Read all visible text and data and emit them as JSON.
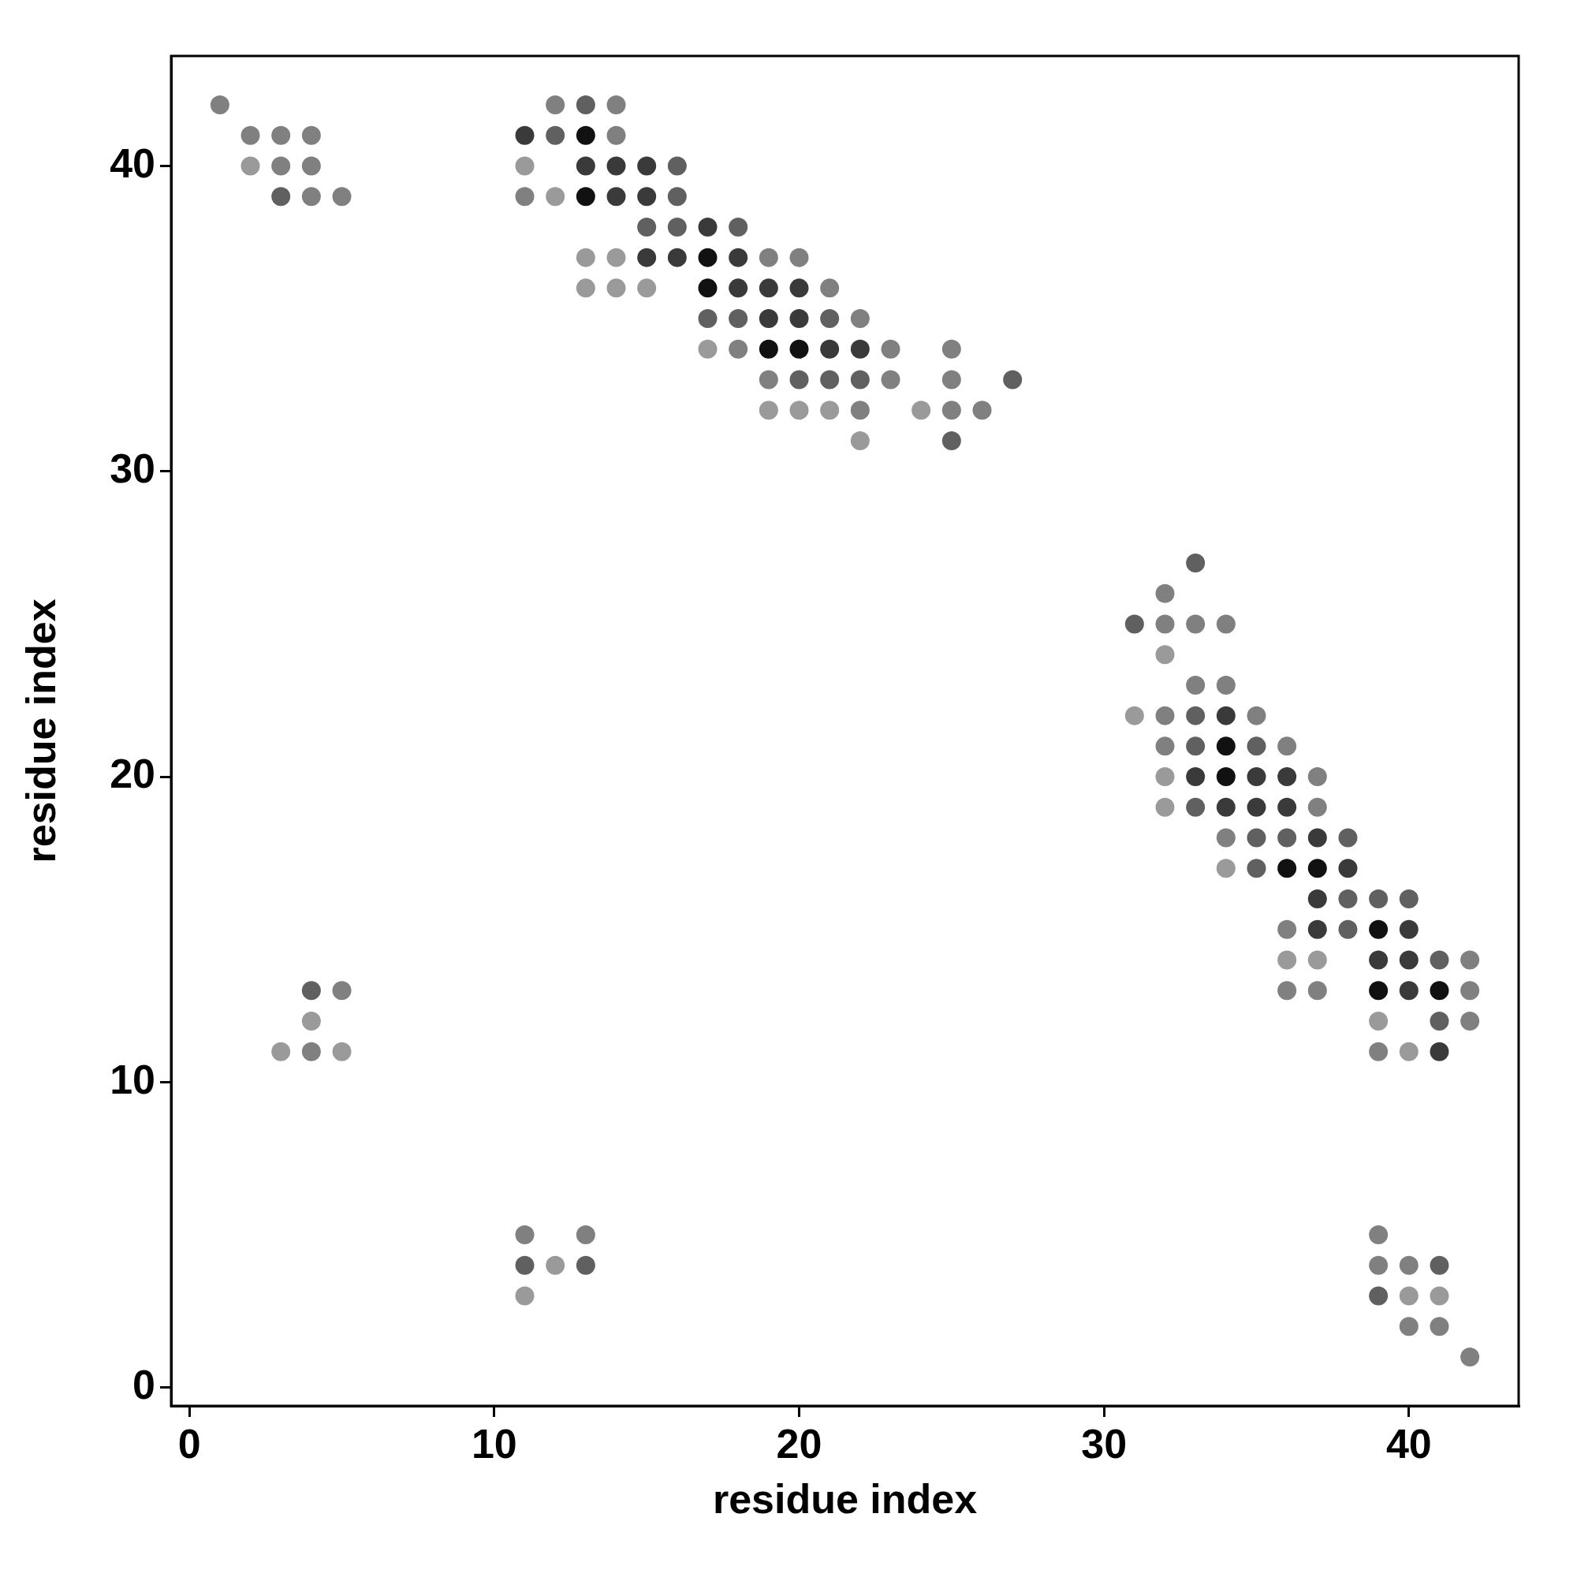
{
  "chart_data": {
    "type": "scatter",
    "xlabel": "residue index",
    "ylabel": "residue index",
    "xlim": [
      -0.6,
      43.6
    ],
    "ylim": [
      -0.6,
      43.6
    ],
    "xticks": [
      0,
      10,
      20,
      30,
      40
    ],
    "yticks": [
      0,
      10,
      20,
      30,
      40
    ],
    "marker": "circle",
    "series": [
      {
        "x": [
          1,
          12,
          13,
          14,
          2,
          3,
          4,
          11,
          12,
          13,
          14,
          2,
          3,
          4,
          11,
          13,
          14,
          15,
          16,
          3,
          4,
          5,
          11,
          12,
          13,
          14,
          15,
          16,
          15,
          16,
          17,
          18,
          13,
          14,
          15,
          16,
          17,
          18,
          19,
          20,
          13,
          14,
          15,
          17,
          18,
          19,
          20,
          21,
          17,
          18,
          19,
          20,
          21,
          22,
          17,
          18,
          19,
          20,
          21,
          22,
          23,
          25,
          19,
          20,
          21,
          22,
          23,
          25,
          27,
          19,
          20,
          21,
          22,
          24,
          25,
          26,
          22,
          25,
          33,
          32,
          31,
          32,
          33,
          34,
          32,
          33,
          34,
          31,
          32,
          33,
          34,
          35,
          32,
          33,
          34,
          35,
          36,
          32,
          33,
          34,
          35,
          36,
          37,
          32,
          33,
          34,
          35,
          36,
          37,
          34,
          35,
          36,
          37,
          38,
          34,
          35,
          36,
          37,
          38,
          37,
          38,
          39,
          40,
          36,
          37,
          38,
          39,
          40,
          36,
          37,
          39,
          40,
          41,
          42,
          4,
          5,
          36,
          37,
          39,
          40,
          41,
          42,
          4,
          39,
          41,
          42,
          3,
          4,
          5,
          39,
          40,
          41,
          11,
          13,
          39,
          11,
          12,
          13,
          39,
          40,
          41,
          11,
          39,
          40,
          41,
          40,
          41,
          42
        ],
        "values": [
          42,
          42,
          42,
          42,
          41,
          41,
          41,
          41,
          41,
          41,
          41,
          40,
          40,
          40,
          40,
          40,
          40,
          40,
          40,
          39,
          39,
          39,
          39,
          39,
          39,
          39,
          39,
          39,
          38,
          38,
          38,
          38,
          37,
          37,
          37,
          37,
          37,
          37,
          37,
          37,
          36,
          36,
          36,
          36,
          36,
          36,
          36,
          36,
          35,
          35,
          35,
          35,
          35,
          35,
          34,
          34,
          34,
          34,
          34,
          34,
          34,
          34,
          33,
          33,
          33,
          33,
          33,
          33,
          33,
          32,
          32,
          32,
          32,
          32,
          32,
          32,
          31,
          31,
          27,
          26,
          25,
          25,
          25,
          25,
          24,
          23,
          23,
          22,
          22,
          22,
          22,
          22,
          21,
          21,
          21,
          21,
          21,
          20,
          20,
          20,
          20,
          20,
          20,
          19,
          19,
          19,
          19,
          19,
          19,
          18,
          18,
          18,
          18,
          18,
          17,
          17,
          17,
          17,
          17,
          16,
          16,
          16,
          16,
          15,
          15,
          15,
          15,
          15,
          14,
          14,
          14,
          14,
          14,
          14,
          13,
          13,
          13,
          13,
          13,
          13,
          13,
          13,
          12,
          12,
          12,
          12,
          11,
          11,
          11,
          11,
          11,
          11,
          5,
          5,
          5,
          4,
          4,
          4,
          4,
          4,
          4,
          3,
          3,
          3,
          3,
          2,
          2,
          1
        ],
        "colors": [
          "#808080",
          "#808080",
          "#606060",
          "#808080",
          "#808080",
          "#808080",
          "#808080",
          "#3a3a3a",
          "#606060",
          "#111111",
          "#808080",
          "#9a9a9a",
          "#808080",
          "#808080",
          "#9a9a9a",
          "#3a3a3a",
          "#3a3a3a",
          "#3a3a3a",
          "#606060",
          "#606060",
          "#808080",
          "#808080",
          "#808080",
          "#9a9a9a",
          "#111111",
          "#3a3a3a",
          "#3a3a3a",
          "#606060",
          "#606060",
          "#606060",
          "#3a3a3a",
          "#606060",
          "#9a9a9a",
          "#9a9a9a",
          "#3a3a3a",
          "#3a3a3a",
          "#111111",
          "#3a3a3a",
          "#808080",
          "#808080",
          "#9a9a9a",
          "#9a9a9a",
          "#9a9a9a",
          "#111111",
          "#3a3a3a",
          "#3a3a3a",
          "#3a3a3a",
          "#808080",
          "#606060",
          "#606060",
          "#3a3a3a",
          "#3a3a3a",
          "#606060",
          "#808080",
          "#9a9a9a",
          "#808080",
          "#111111",
          "#111111",
          "#3a3a3a",
          "#3a3a3a",
          "#808080",
          "#808080",
          "#808080",
          "#606060",
          "#606060",
          "#606060",
          "#808080",
          "#808080",
          "#606060",
          "#9a9a9a",
          "#9a9a9a",
          "#9a9a9a",
          "#808080",
          "#9a9a9a",
          "#808080",
          "#808080",
          "#9a9a9a",
          "#606060",
          "#606060",
          "#808080",
          "#606060",
          "#808080",
          "#808080",
          "#808080",
          "#9a9a9a",
          "#808080",
          "#808080",
          "#9a9a9a",
          "#808080",
          "#606060",
          "#3a3a3a",
          "#808080",
          "#808080",
          "#606060",
          "#111111",
          "#606060",
          "#808080",
          "#9a9a9a",
          "#3a3a3a",
          "#111111",
          "#3a3a3a",
          "#3a3a3a",
          "#808080",
          "#9a9a9a",
          "#606060",
          "#3a3a3a",
          "#3a3a3a",
          "#3a3a3a",
          "#808080",
          "#808080",
          "#606060",
          "#606060",
          "#3a3a3a",
          "#606060",
          "#9a9a9a",
          "#606060",
          "#111111",
          "#111111",
          "#3a3a3a",
          "#3a3a3a",
          "#606060",
          "#606060",
          "#606060",
          "#808080",
          "#3a3a3a",
          "#606060",
          "#111111",
          "#3a3a3a",
          "#9a9a9a",
          "#9a9a9a",
          "#3a3a3a",
          "#3a3a3a",
          "#606060",
          "#808080",
          "#606060",
          "#808080",
          "#808080",
          "#808080",
          "#111111",
          "#3a3a3a",
          "#111111",
          "#808080",
          "#9a9a9a",
          "#9a9a9a",
          "#606060",
          "#808080",
          "#9a9a9a",
          "#808080",
          "#9a9a9a",
          "#808080",
          "#9a9a9a",
          "#3a3a3a",
          "#808080",
          "#808080",
          "#808080",
          "#606060",
          "#9a9a9a",
          "#606060",
          "#808080",
          "#808080",
          "#606060",
          "#9a9a9a",
          "#606060",
          "#9a9a9a",
          "#9a9a9a",
          "#808080",
          "#808080",
          "#808080"
        ]
      }
    ]
  }
}
